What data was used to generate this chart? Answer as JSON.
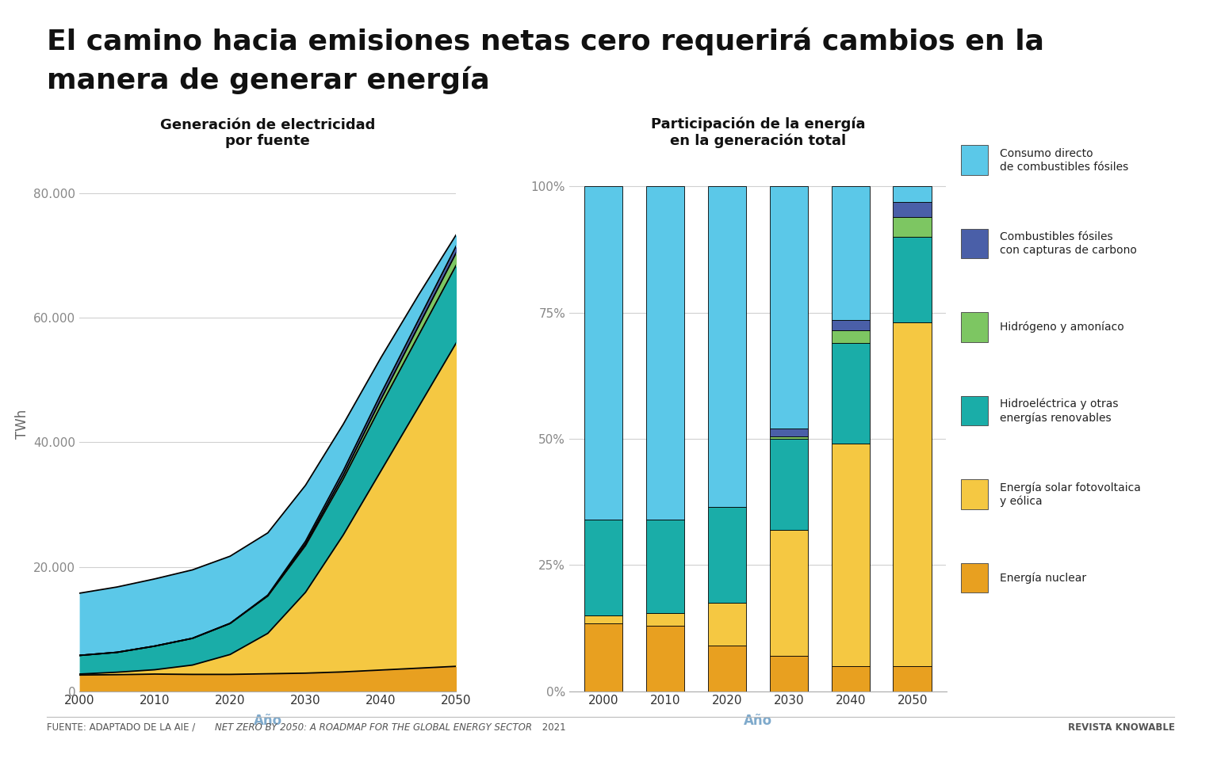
{
  "title_line1": "El camino hacia emisiones netas cero requerirá cambios en la",
  "title_line2": "manera de generar energía",
  "title_fontsize": 26,
  "left_title": "Generación de electricidad\npor fuente",
  "right_title": "Participación de la energía\nen la generación total",
  "chart_title_fontsize": 13,
  "xlabel": "Año",
  "ylabel_left": "TWh",
  "background_color": "#ffffff",
  "colors": {
    "nuclear": "#E8A020",
    "solar_wind": "#F5C842",
    "hydro_other": "#1AADA8",
    "hydrogen": "#7DC662",
    "fossil_ccs": "#4A5FA8",
    "fossil_direct": "#5BC8E8"
  },
  "area_years": [
    2000,
    2005,
    2010,
    2015,
    2020,
    2025,
    2030,
    2035,
    2040,
    2045,
    2050
  ],
  "area_nuclear": [
    2600,
    2650,
    2750,
    2700,
    2700,
    2800,
    2900,
    3100,
    3400,
    3700,
    4000
  ],
  "area_solar_wind": [
    150,
    400,
    700,
    1500,
    3200,
    6500,
    13000,
    22000,
    32000,
    42000,
    52000
  ],
  "area_hydro_other": [
    3000,
    3200,
    3800,
    4300,
    5000,
    6000,
    7500,
    9000,
    10500,
    11500,
    12500
  ],
  "area_hydrogen": [
    0,
    0,
    0,
    0,
    0,
    50,
    300,
    600,
    1000,
    1500,
    2000
  ],
  "area_fossil_ccs": [
    0,
    0,
    0,
    0,
    0,
    100,
    400,
    700,
    900,
    1000,
    1100
  ],
  "area_fossil_direct": [
    10000,
    10500,
    10800,
    11000,
    10800,
    10000,
    9000,
    7500,
    5800,
    4000,
    1800
  ],
  "bar_years": [
    "2000",
    "2010",
    "2020",
    "2030",
    "2040",
    "2050"
  ],
  "bar_nuclear": [
    13.5,
    13.0,
    9.0,
    7.0,
    5.0,
    5.0
  ],
  "bar_solar_wind": [
    1.5,
    2.5,
    8.5,
    25.0,
    44.0,
    68.0
  ],
  "bar_hydro_other": [
    19.0,
    18.5,
    19.0,
    18.0,
    20.0,
    17.0
  ],
  "bar_hydrogen": [
    0.0,
    0.0,
    0.0,
    0.5,
    2.5,
    4.0
  ],
  "bar_fossil_ccs": [
    0.0,
    0.0,
    0.0,
    1.5,
    2.0,
    3.0
  ],
  "bar_fossil_direct": [
    66.0,
    66.0,
    63.5,
    48.0,
    26.5,
    3.0
  ],
  "source_text": "FUENTE: ADAPTADO DE LA AIE / ",
  "source_italic": "NET ZERO BY 2050: A ROADMAP FOR THE GLOBAL ENERGY SECTOR",
  "source_year": " 2021",
  "revista_text": "REVISTA KNOWABLE",
  "legend_labels": [
    "Consumo directo\nde combustibles fósiles",
    "Combustibles fósiles\ncon capturas de carbono",
    "Hidrógeno y amoníaco",
    "Hidroeléctrica y otras\nenergías renovables",
    "Energía solar fotovoltaica\ny eólica",
    "Energía nuclear"
  ],
  "legend_colors": [
    "#5BC8E8",
    "#4A5FA8",
    "#7DC662",
    "#1AADA8",
    "#F5C842",
    "#E8A020"
  ]
}
